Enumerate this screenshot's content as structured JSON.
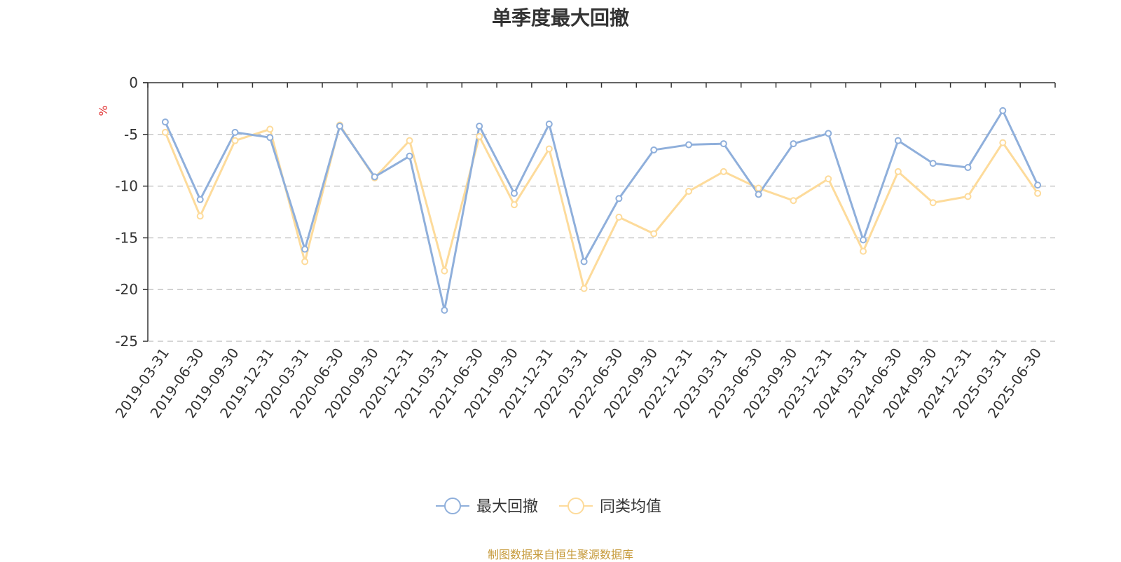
{
  "title": "单季度最大回撤",
  "source": "制图数据来自恒生聚源数据库",
  "chart_data": {
    "type": "line",
    "title": "单季度最大回撤",
    "ylabel": "%",
    "ylim": [
      -25,
      0
    ],
    "yticks": [
      0,
      -5,
      -10,
      -15,
      -20,
      -25
    ],
    "grid": true,
    "legend_position": "bottom-center",
    "categories": [
      "2019-03-31",
      "2019-06-30",
      "2019-09-30",
      "2019-12-31",
      "2020-03-31",
      "2020-06-30",
      "2020-09-30",
      "2020-12-31",
      "2021-03-31",
      "2021-06-30",
      "2021-09-30",
      "2021-12-31",
      "2022-03-31",
      "2022-06-30",
      "2022-09-30",
      "2022-12-31",
      "2023-03-31",
      "2023-06-30",
      "2023-09-30",
      "2023-12-31",
      "2024-03-31",
      "2024-06-30",
      "2024-09-30",
      "2024-12-31",
      "2025-03-31",
      "2025-06-30"
    ],
    "series": [
      {
        "name": "最大回撤",
        "color": "#8fafdb",
        "values": [
          -3.8,
          -11.3,
          -4.8,
          -5.3,
          -16.1,
          -4.2,
          -9.1,
          -7.1,
          -22.0,
          -4.2,
          -10.7,
          -4.0,
          -17.3,
          -11.2,
          -6.5,
          -6.0,
          -5.9,
          -10.8,
          -5.9,
          -4.9,
          -15.2,
          -5.6,
          -7.8,
          -8.2,
          -2.7,
          -9.9
        ]
      },
      {
        "name": "同类均值",
        "color": "#fddb9b",
        "values": [
          -4.8,
          -12.9,
          -5.6,
          -4.5,
          -17.3,
          -4.1,
          -9.2,
          -5.6,
          -18.2,
          -5.2,
          -11.8,
          -6.4,
          -19.9,
          -13.0,
          -14.6,
          -10.5,
          -8.6,
          -10.2,
          -11.4,
          -9.3,
          -16.3,
          -8.6,
          -11.6,
          -11.0,
          -5.8,
          -10.7
        ]
      }
    ]
  }
}
